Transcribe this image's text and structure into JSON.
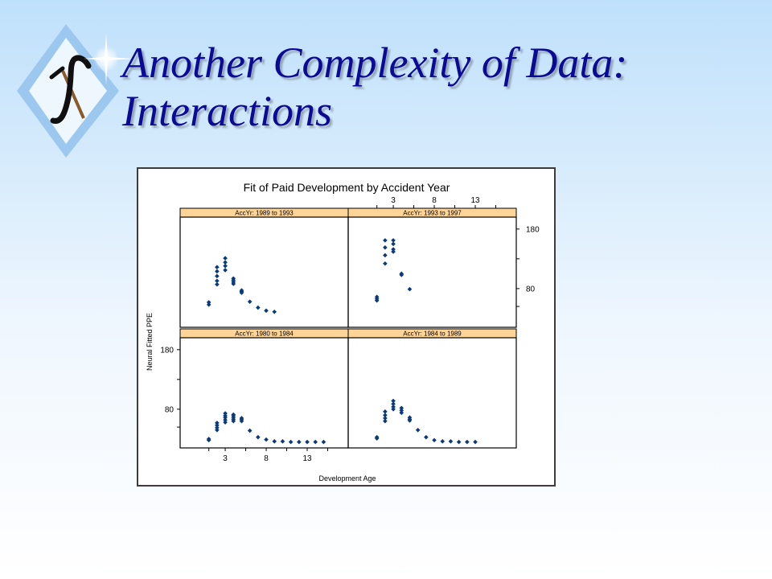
{
  "slide": {
    "title_line1": "Another Complexity of Data:",
    "title_line2": "Interactions"
  },
  "colors": {
    "title": "#0a0a96",
    "strip": "#ffd499",
    "points": "#0a3a7a"
  },
  "chart_data": {
    "type": "scatter",
    "title": "Fit of Paid Development by Accident Year",
    "xlabel": "Development Age",
    "ylabel": "Neural Fitted PPE",
    "xlim": [
      -2.5,
      18
    ],
    "ylim": [
      15,
      200
    ],
    "x_ticks": [
      3,
      8,
      13
    ],
    "y_ticks": [
      80,
      180
    ],
    "grid": false,
    "panels": [
      {
        "strip": "AccYr: 1980 to 1984",
        "position": "bottom-left",
        "points": [
          [
            1,
            28
          ],
          [
            1,
            30
          ],
          [
            2,
            45
          ],
          [
            2,
            49
          ],
          [
            2,
            53
          ],
          [
            2,
            57
          ],
          [
            3,
            58
          ],
          [
            3,
            62
          ],
          [
            3,
            66
          ],
          [
            3,
            69
          ],
          [
            3,
            73
          ],
          [
            4,
            60
          ],
          [
            4,
            63
          ],
          [
            4,
            66
          ],
          [
            4,
            69
          ],
          [
            4,
            71
          ],
          [
            5,
            60
          ],
          [
            5,
            63
          ],
          [
            5,
            65
          ],
          [
            6,
            44
          ],
          [
            7,
            33
          ],
          [
            8,
            29
          ],
          [
            9,
            26
          ],
          [
            10,
            26
          ],
          [
            11,
            25
          ],
          [
            12,
            25
          ],
          [
            13,
            25
          ],
          [
            14,
            25
          ],
          [
            15,
            25
          ]
        ]
      },
      {
        "strip": "AccYr: 1984 to 1989",
        "position": "bottom-right",
        "points": [
          [
            1,
            31
          ],
          [
            1,
            33
          ],
          [
            2,
            60
          ],
          [
            2,
            65
          ],
          [
            2,
            70
          ],
          [
            2,
            76
          ],
          [
            3,
            80
          ],
          [
            3,
            84
          ],
          [
            3,
            89
          ],
          [
            3,
            94
          ],
          [
            4,
            74
          ],
          [
            4,
            78
          ],
          [
            4,
            82
          ],
          [
            5,
            61
          ],
          [
            5,
            63
          ],
          [
            5,
            66
          ],
          [
            6,
            45
          ],
          [
            7,
            33
          ],
          [
            8,
            28
          ],
          [
            9,
            26
          ],
          [
            10,
            26
          ],
          [
            11,
            25
          ],
          [
            12,
            25
          ],
          [
            13,
            25
          ]
        ]
      },
      {
        "strip": "AccYr: 1989 to 1993",
        "position": "top-left",
        "points": [
          [
            1,
            53
          ],
          [
            1,
            57
          ],
          [
            2,
            87
          ],
          [
            2,
            93
          ],
          [
            2,
            101
          ],
          [
            2,
            109
          ],
          [
            2,
            116
          ],
          [
            3,
            111
          ],
          [
            3,
            118
          ],
          [
            3,
            124
          ],
          [
            3,
            131
          ],
          [
            4,
            88
          ],
          [
            4,
            91
          ],
          [
            4,
            94
          ],
          [
            4,
            97
          ],
          [
            5,
            73
          ],
          [
            5,
            75
          ],
          [
            5,
            77
          ],
          [
            6,
            58
          ],
          [
            7,
            48
          ],
          [
            8,
            43
          ],
          [
            9,
            41
          ]
        ]
      },
      {
        "strip": "AccYr: 1993 to 1997",
        "position": "top-right",
        "points": [
          [
            1,
            60
          ],
          [
            1,
            63
          ],
          [
            1,
            66
          ],
          [
            2,
            122
          ],
          [
            2,
            136
          ],
          [
            2,
            149
          ],
          [
            2,
            161
          ],
          [
            3,
            142
          ],
          [
            3,
            146
          ],
          [
            3,
            155
          ],
          [
            3,
            161
          ],
          [
            4,
            103
          ],
          [
            4,
            105
          ],
          [
            5,
            79
          ]
        ]
      }
    ]
  }
}
